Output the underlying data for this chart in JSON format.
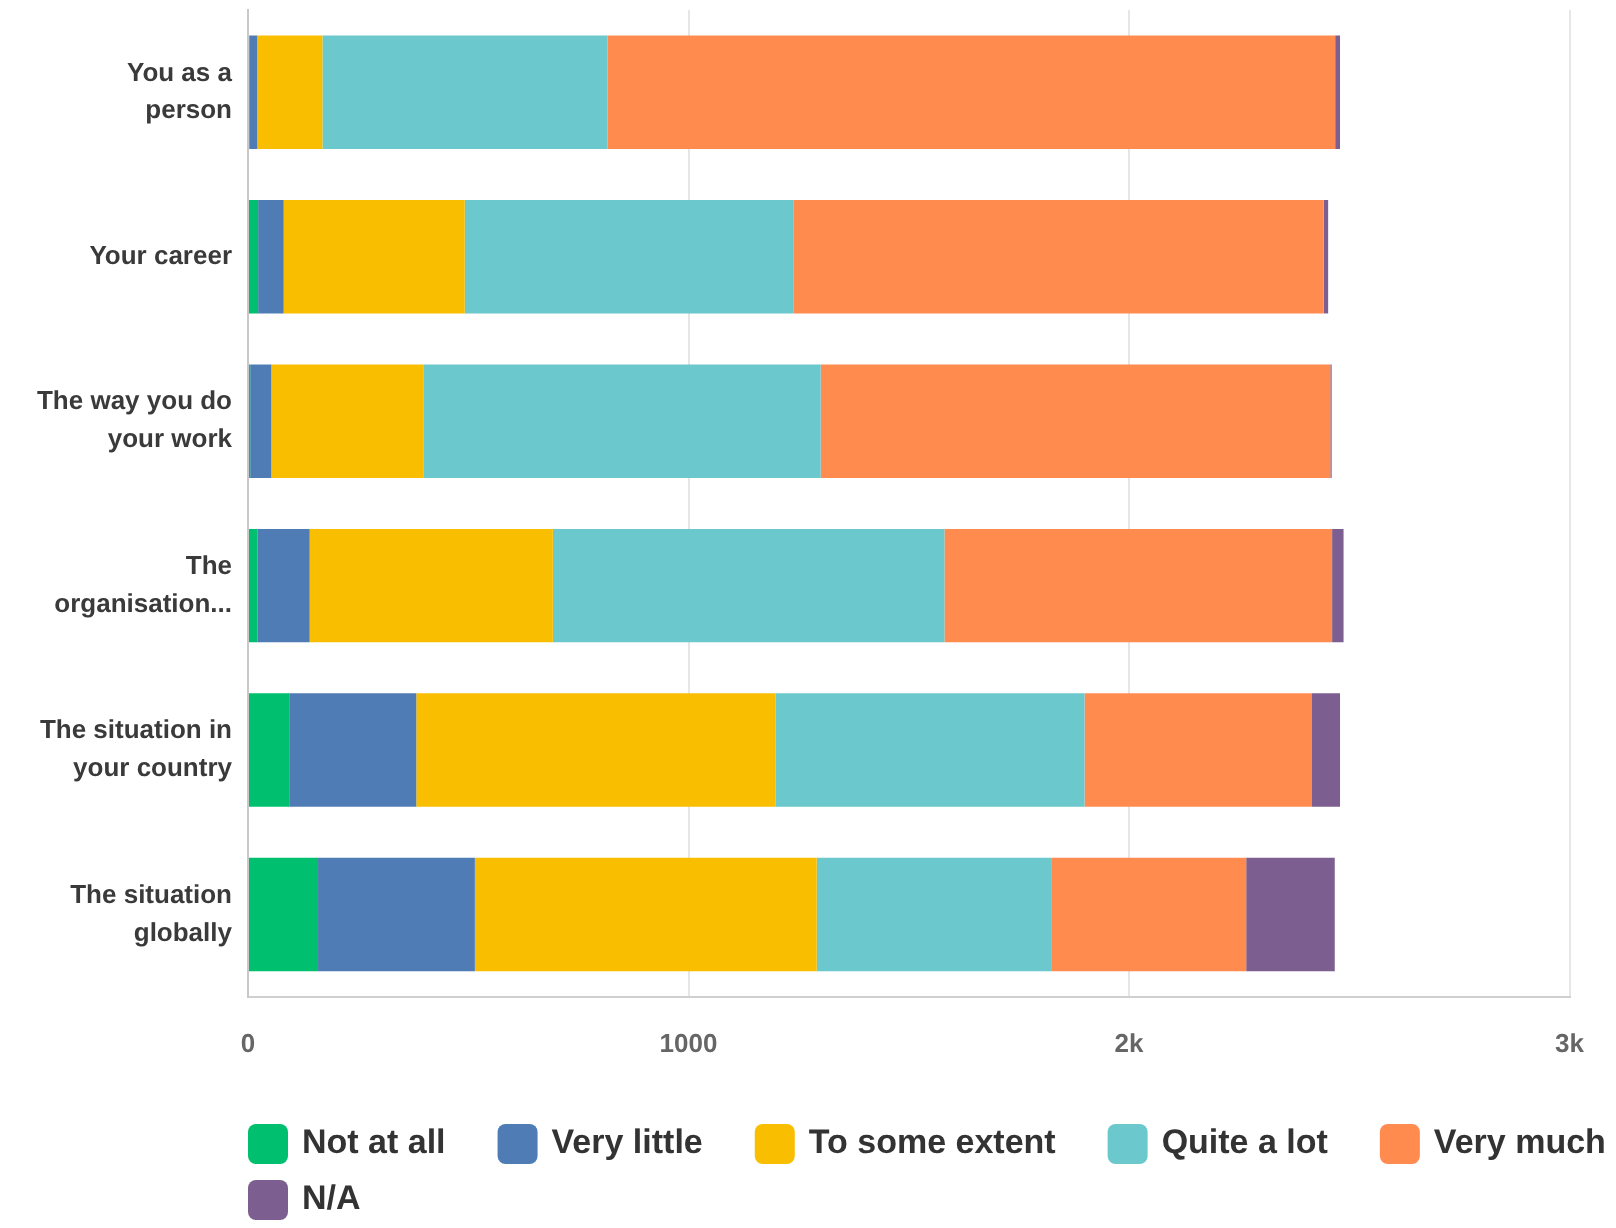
{
  "chart_data": {
    "type": "bar",
    "orientation": "horizontal",
    "stacked": true,
    "categories": [
      "You as a person",
      "Your career",
      "The way you do your work",
      "The organisation...",
      "The situation in your country",
      "The situation globally"
    ],
    "series": [
      {
        "name": "Not at all",
        "color": "#00bf6f",
        "values": [
          4,
          23,
          5,
          22,
          95,
          159
        ]
      },
      {
        "name": "Very little",
        "color": "#507cb6",
        "values": [
          17,
          58,
          48,
          118,
          287,
          356
        ]
      },
      {
        "name": "To some extent",
        "color": "#f9be00",
        "values": [
          148,
          411,
          345,
          552,
          816,
          776
        ]
      },
      {
        "name": "Quite a lot",
        "color": "#6bc8cd",
        "values": [
          647,
          747,
          902,
          889,
          701,
          534
        ]
      },
      {
        "name": "Very much",
        "color": "#ff8b4f",
        "values": [
          1652,
          1203,
          1157,
          880,
          515,
          441
        ]
      },
      {
        "name": "N/A",
        "color": "#7d5e90",
        "values": [
          11,
          10,
          3,
          26,
          65,
          201
        ]
      }
    ],
    "xlim": [
      0,
      3000
    ],
    "xticks": [
      0,
      1000,
      {
        "value": 2000,
        "label": "2k"
      },
      {
        "value": 3000,
        "label": "3k"
      }
    ],
    "grid": "x",
    "legend": "bottom"
  }
}
